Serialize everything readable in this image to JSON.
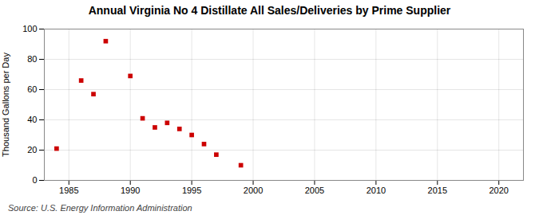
{
  "chart_data": {
    "type": "scatter",
    "title": "Annual Virginia No 4 Distillate All Sales/Deliveries by Prime Supplier",
    "ylabel": "Thousand Gallons per Day",
    "source": "Source: U.S. Energy Information Administration",
    "x": [
      1984,
      1986,
      1987,
      1988,
      1990,
      1991,
      1992,
      1993,
      1994,
      1995,
      1996,
      1997,
      1999
    ],
    "values": [
      21,
      66,
      57,
      92,
      69,
      41,
      35,
      38,
      34,
      30,
      24,
      17,
      10
    ],
    "color": "#cc0000",
    "marker": "square",
    "xlim": [
      1983,
      2022
    ],
    "ylim": [
      0,
      100
    ],
    "xticks": [
      1985,
      1990,
      1995,
      2000,
      2005,
      2010,
      2015,
      2020
    ],
    "yticks": [
      0,
      20,
      40,
      60,
      80,
      100
    ],
    "grid": true
  }
}
